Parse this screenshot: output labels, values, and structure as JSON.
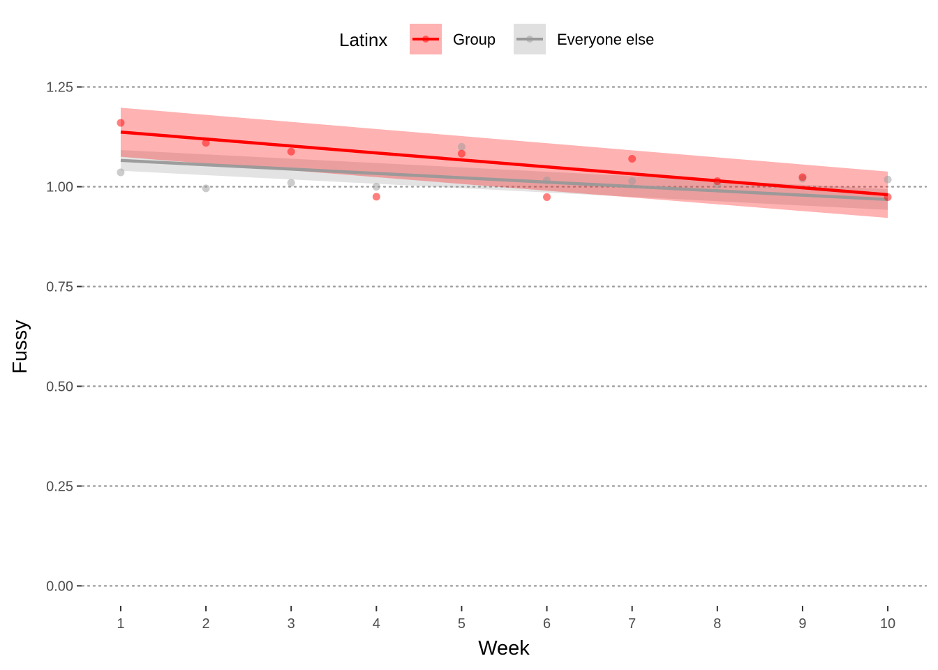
{
  "chart_data": {
    "type": "line",
    "xlabel": "Week",
    "ylabel": "Fussy",
    "x": [
      1,
      2,
      3,
      4,
      5,
      6,
      7,
      8,
      9,
      10
    ],
    "x_tick_labels": [
      "1",
      "2",
      "3",
      "4",
      "5",
      "6",
      "7",
      "8",
      "9",
      "10"
    ],
    "xlim": [
      0.55,
      10.45
    ],
    "ylim": [
      -0.05,
      1.3
    ],
    "y_ticks": [
      0.0,
      0.25,
      0.5,
      0.75,
      1.0,
      1.25
    ],
    "y_tick_labels": [
      "0.00",
      "0.25",
      "0.50",
      "0.75",
      "1.00",
      "1.25"
    ],
    "grid": "horizontal dotted",
    "legend": {
      "title": "Latinx",
      "position": "top"
    },
    "series": [
      {
        "name": "Group",
        "color": "#ff0000",
        "points": [
          1.16,
          1.11,
          1.088,
          0.975,
          1.083,
          0.974,
          1.07,
          1.014,
          1.024,
          0.974
        ],
        "fit": {
          "start": 1.137,
          "end": 0.98
        },
        "ci": {
          "lower_start": 1.075,
          "upper_start": 1.198,
          "lower_end": 0.922,
          "upper_end": 1.038
        }
      },
      {
        "name": "Everyone else",
        "color": "#999999",
        "points": [
          1.036,
          0.996,
          1.01,
          1.0,
          1.1,
          1.016,
          1.014,
          1.005,
          1.02,
          1.018
        ],
        "fit": {
          "start": 1.066,
          "end": 0.968
        },
        "ci": {
          "lower_start": 1.04,
          "upper_start": 1.092,
          "lower_end": 0.942,
          "upper_end": 0.994
        }
      }
    ]
  }
}
